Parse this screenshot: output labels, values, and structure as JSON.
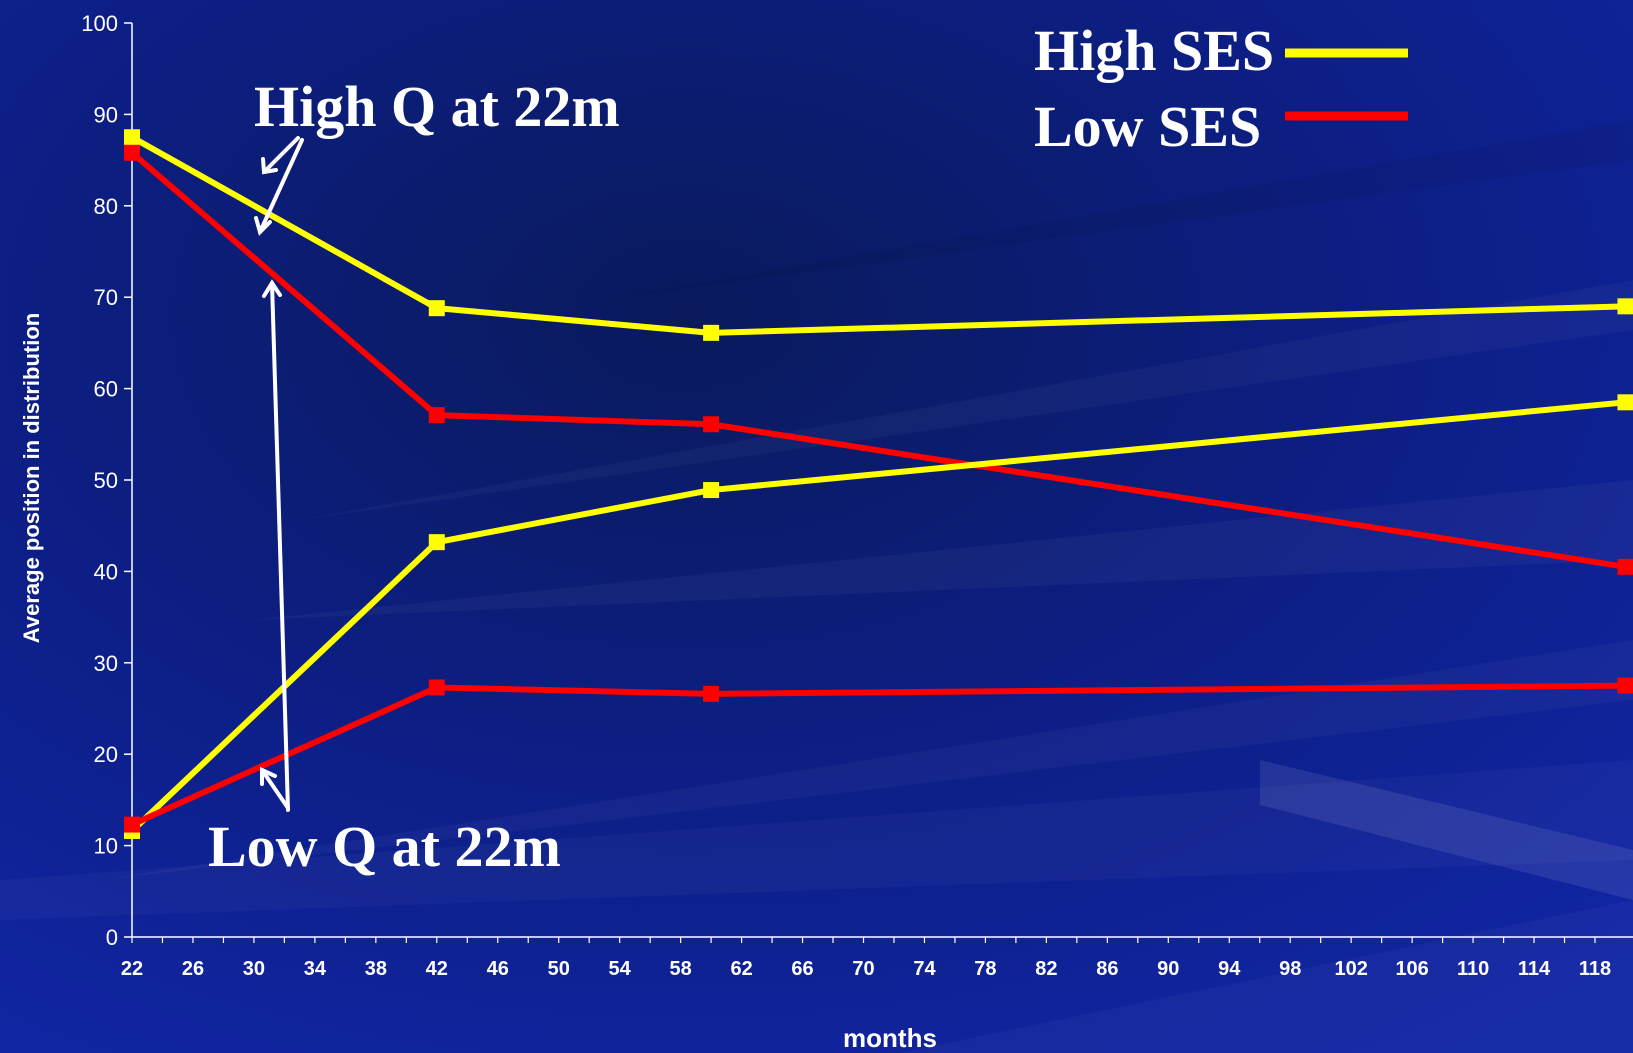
{
  "colors": {
    "background": "#0a0f6a",
    "high_ses": "#ffff00",
    "low_ses": "#ff0000",
    "axis": "#ffffff",
    "annotation": "#ffffff"
  },
  "chart_data": {
    "type": "line",
    "xlabel": "months",
    "ylabel": "Average position in distribution",
    "ylim": [
      0,
      100
    ],
    "yticks": [
      0,
      10,
      20,
      30,
      40,
      50,
      60,
      70,
      80,
      90,
      100
    ],
    "xlim": [
      22,
      118
    ],
    "xtick_labels": [
      22,
      26,
      30,
      34,
      38,
      42,
      46,
      50,
      54,
      58,
      62,
      66,
      70,
      74,
      78,
      82,
      86,
      90,
      94,
      98,
      102,
      106,
      110,
      114,
      118
    ],
    "grid": false,
    "legend": [
      {
        "name": "High SES",
        "color": "#ffff00"
      },
      {
        "name": "Low SES",
        "color": "#ff0000"
      }
    ],
    "series": [
      {
        "group": "High SES",
        "color": "#ffff00",
        "x": [
          22,
          42,
          60,
          120
        ],
        "y": [
          87.5,
          68.8,
          66.1,
          69.0
        ]
      },
      {
        "group": "Low SES",
        "color": "#ff0000",
        "x": [
          22,
          42,
          60,
          120
        ],
        "y": [
          85.8,
          57.1,
          56.1,
          40.5
        ]
      },
      {
        "group": "High SES",
        "color": "#ffff00",
        "x": [
          22,
          42,
          60,
          120
        ],
        "y": [
          11.6,
          43.2,
          48.9,
          58.5
        ]
      },
      {
        "group": "Low SES",
        "color": "#ff0000",
        "x": [
          22,
          42,
          60,
          120
        ],
        "y": [
          12.3,
          27.3,
          26.6,
          27.5
        ]
      }
    ],
    "annotations": [
      {
        "text": "High Q at 22m"
      },
      {
        "text": "Low Q at 22m"
      }
    ]
  }
}
